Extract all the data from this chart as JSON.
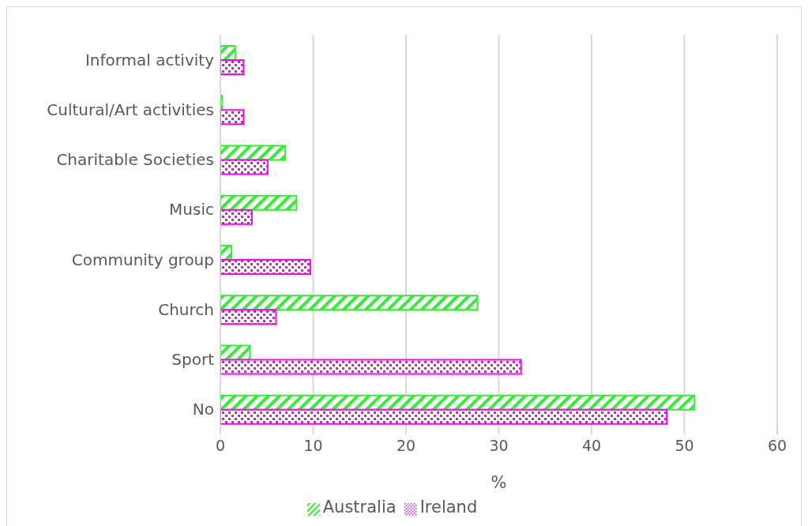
{
  "chart_data": {
    "type": "bar",
    "orientation": "horizontal",
    "xlabel": "%",
    "categories": [
      "Informal activity",
      "Cultural/Art activities",
      "Charitable Societies",
      "Music",
      "Community group",
      "Church",
      "Sport",
      "No"
    ],
    "series": [
      {
        "name": "Australia",
        "color": "#33ee33",
        "values": [
          1.6,
          0.2,
          7.0,
          8.2,
          1.2,
          27.7,
          3.2,
          51.1
        ]
      },
      {
        "name": "Ireland",
        "color": "#ff00ff",
        "values": [
          2.5,
          2.5,
          5.1,
          3.4,
          9.7,
          6.0,
          32.4,
          48.1
        ]
      }
    ],
    "xlim": [
      0,
      60
    ],
    "xticks": [
      0,
      10,
      20,
      30,
      40,
      50,
      60
    ],
    "grid": "x",
    "legend": "bottom"
  }
}
